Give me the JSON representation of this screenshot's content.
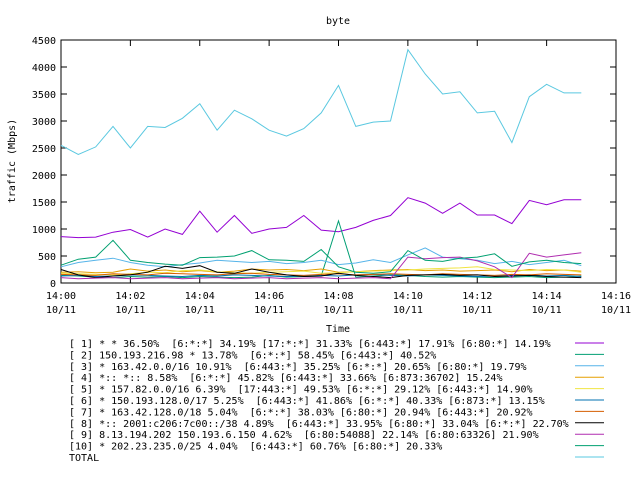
{
  "chart_data": {
    "type": "line",
    "title": "byte",
    "xlabel": "Time",
    "ylabel": "traffic (Mbps)",
    "ylim": [
      0,
      4500
    ],
    "yticks": [
      0,
      500,
      1000,
      1500,
      2000,
      2500,
      3000,
      3500,
      4000,
      4500
    ],
    "xlim_minutes": [
      0,
      16
    ],
    "xticks": [
      {
        "m": 0,
        "time": "14:00",
        "date": "10/11"
      },
      {
        "m": 2,
        "time": "14:02",
        "date": "10/11"
      },
      {
        "m": 4,
        "time": "14:04",
        "date": "10/11"
      },
      {
        "m": 6,
        "time": "14:06",
        "date": "10/11"
      },
      {
        "m": 8,
        "time": "14:08",
        "date": "10/11"
      },
      {
        "m": 10,
        "time": "14:10",
        "date": "10/11"
      },
      {
        "m": 12,
        "time": "14:12",
        "date": "10/11"
      },
      {
        "m": 14,
        "time": "14:14",
        "date": "10/11"
      },
      {
        "m": 16,
        "time": "14:16",
        "date": "10/11"
      }
    ],
    "x": [
      0,
      0.5,
      1,
      1.5,
      2,
      2.5,
      3,
      3.5,
      4,
      4.5,
      5,
      5.5,
      6,
      6.5,
      7,
      7.5,
      8,
      8.5,
      9,
      9.5,
      10,
      10.5,
      11,
      11.5,
      12,
      12.5,
      13,
      13.5,
      14,
      14.5,
      15
    ],
    "legend_position": "below",
    "series": [
      {
        "name": "[ 1] * * 36.50%  [6:*:*] 34.19% [17:*:*] 31.33% [6:443:*] 17.91% [6:80:*] 14.19%",
        "color": "#9400d3",
        "values": [
          860,
          840,
          850,
          940,
          990,
          850,
          1000,
          900,
          1330,
          940,
          1250,
          920,
          1000,
          1030,
          1250,
          980,
          950,
          1030,
          1160,
          1250,
          1580,
          1480,
          1290,
          1480,
          1260,
          1260,
          1100,
          1530,
          1450,
          1540,
          1540
        ]
      },
      {
        "name": "[ 2] 150.193.216.98 * 13.78%  [6:*:*] 58.45% [6:443:*] 40.52%",
        "color": "#009e73",
        "values": [
          140,
          130,
          110,
          100,
          120,
          110,
          120,
          100,
          120,
          110,
          100,
          110,
          140,
          110,
          120,
          130,
          1150,
          110,
          130,
          150,
          140,
          120,
          110,
          120,
          110,
          100,
          110,
          120,
          100,
          110,
          130
        ]
      },
      {
        "name": "[ 3] * 163.42.0.0/16 10.91%  [6:443:*] 35.25% [6:*:*] 20.65% [6:80:*] 19.79%",
        "color": "#56b4e9",
        "values": [
          300,
          380,
          420,
          460,
          380,
          330,
          300,
          340,
          370,
          420,
          400,
          380,
          400,
          360,
          380,
          420,
          340,
          370,
          430,
          380,
          520,
          650,
          480,
          450,
          420,
          360,
          400,
          340,
          380,
          420,
          320
        ]
      },
      {
        "name": "[ 4] *:: *:: 8.58%  [6:*:*] 45.82% [6:443:*] 33.66% [6:873:36702] 15.24%",
        "color": "#e69f00",
        "values": [
          200,
          210,
          190,
          200,
          260,
          220,
          240,
          210,
          230,
          200,
          220,
          260,
          240,
          250,
          230,
          260,
          200,
          210,
          230,
          240,
          250,
          230,
          240,
          220,
          230,
          240,
          210,
          250,
          230,
          240,
          220
        ]
      },
      {
        "name": "[ 5] * 157.82.0.0/16 6.39%  [17:443:*] 49.53% [6:*:*] 29.12% [6:443:*] 14.90%",
        "color": "#f0e442",
        "values": [
          180,
          170,
          160,
          150,
          170,
          200,
          190,
          230,
          240,
          210,
          190,
          180,
          200,
          210,
          220,
          180,
          190,
          210,
          220,
          230,
          240,
          260,
          270,
          280,
          300,
          250,
          240,
          230,
          250,
          240,
          200
        ]
      },
      {
        "name": "[ 6] * 150.193.128.0/17 5.25%  [6:443:*] 41.86% [6:*:*] 40.33% [6:873:*] 13.15%",
        "color": "#0072b2",
        "values": [
          130,
          140,
          120,
          130,
          150,
          140,
          130,
          120,
          140,
          130,
          150,
          140,
          130,
          120,
          130,
          140,
          130,
          150,
          160,
          140,
          130,
          150,
          140,
          130,
          120,
          130,
          140,
          150,
          130,
          140,
          120
        ]
      },
      {
        "name": "[ 7] * 163.42.128.0/18 5.04%  [6:*:*] 38.03% [6:80:*] 20.94% [6:443:*] 20.92%",
        "color": "#d55e00",
        "values": [
          160,
          150,
          140,
          170,
          160,
          150,
          180,
          170,
          160,
          150,
          170,
          180,
          160,
          150,
          140,
          160,
          170,
          150,
          160,
          170,
          160,
          150,
          170,
          160,
          150,
          140,
          160,
          150,
          170,
          160,
          150
        ]
      },
      {
        "name": "[ 8] *:: 2001:c206:7c00::/38 4.89%  [6:443:*] 33.95% [6:80:*] 33.04% [6:*:*] 22.70%",
        "color": "#000000",
        "values": [
          250,
          150,
          100,
          130,
          150,
          200,
          310,
          270,
          320,
          200,
          180,
          260,
          200,
          150,
          120,
          130,
          180,
          140,
          120,
          100,
          140,
          150,
          160,
          140,
          150,
          120,
          130,
          140,
          120,
          110,
          100
        ]
      },
      {
        "name": "[ 9] 8.13.194.202 150.193.6.150 4.62%  [6:80:54088] 22.14% [6:80:63326] 21.90%",
        "color": "#b02db0",
        "values": [
          100,
          80,
          90,
          100,
          80,
          90,
          100,
          80,
          90,
          100,
          80,
          90,
          100,
          80,
          90,
          100,
          80,
          90,
          100,
          80,
          480,
          450,
          470,
          480,
          410,
          300,
          100,
          550,
          480,
          520,
          560
        ]
      },
      {
        "name": "[10] * 202.23.235.0/25 4.04%  [6:443:*] 60.76% [6:80:*] 20.33%",
        "color": "#00a070",
        "values": [
          330,
          440,
          480,
          790,
          420,
          380,
          350,
          330,
          470,
          480,
          500,
          600,
          430,
          420,
          400,
          620,
          300,
          200,
          180,
          210,
          600,
          420,
          400,
          460,
          480,
          540,
          310,
          390,
          420,
          380,
          360
        ]
      },
      {
        "name": "TOTAL",
        "color": "#5ac8e0",
        "values": [
          2550,
          2380,
          2520,
          2900,
          2500,
          2900,
          2880,
          3050,
          3320,
          2830,
          3200,
          3040,
          2830,
          2720,
          2860,
          3150,
          3660,
          2900,
          2980,
          3000,
          4320,
          3870,
          3500,
          3540,
          3150,
          3180,
          2600,
          3450,
          3680,
          3520,
          3520
        ]
      }
    ]
  }
}
